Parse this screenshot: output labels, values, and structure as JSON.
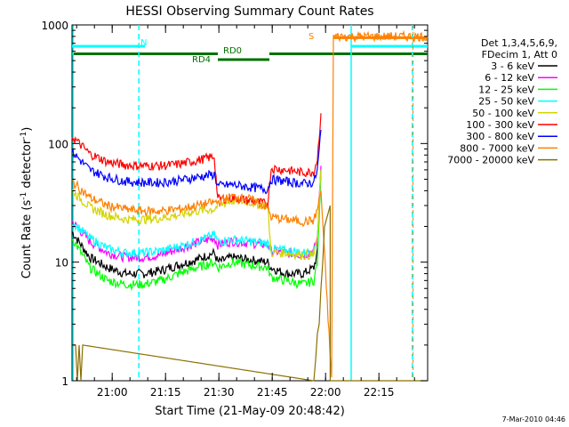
{
  "chart_data": {
    "type": "line",
    "title": "HESSI Observing Summary Count Rates",
    "xlabel": "Start Time (21-May-09 20:48:42)",
    "ylabel_main": "Count Rate (s",
    "ylabel_sup1": "-1",
    "ylabel_mid": " detector",
    "ylabel_sup2": "-1",
    "ylabel_end": ")",
    "y_scale": "log",
    "ylim": [
      1,
      1000
    ],
    "xlim_minutes": [
      0,
      100
    ],
    "y_ticks": [
      {
        "value": 1,
        "label": "1"
      },
      {
        "value": 10,
        "label": "10"
      },
      {
        "value": 100,
        "label": "100"
      },
      {
        "value": 1000,
        "label": "1000"
      }
    ],
    "x_ticks": [
      {
        "minute": 11.3,
        "label": "21:00"
      },
      {
        "minute": 26.3,
        "label": "21:15"
      },
      {
        "minute": 41.3,
        "label": "21:30"
      },
      {
        "minute": 56.3,
        "label": "21:45"
      },
      {
        "minute": 71.3,
        "label": "22:00"
      },
      {
        "minute": 86.3,
        "label": "22:15"
      }
    ],
    "legend": {
      "header": [
        "Det 1,3,4,5,6,9,",
        "FDecim 1, Att 0"
      ],
      "placement": "right"
    },
    "series": [
      {
        "name": "3 - 6 keV",
        "color": "#000000",
        "x": [
          0,
          5,
          10,
          15,
          20,
          25,
          30,
          35,
          40,
          41,
          45,
          50,
          55,
          56,
          60,
          65,
          68,
          69,
          70
        ],
        "y": [
          18,
          11,
          9,
          8,
          8,
          8.5,
          9.5,
          10.5,
          12,
          10,
          11,
          10.5,
          10,
          9,
          8,
          8,
          9,
          12,
          60
        ]
      },
      {
        "name": "6 - 12 keV",
        "color": "#ff00ff",
        "x": [
          0,
          5,
          10,
          15,
          20,
          25,
          30,
          35,
          40,
          41,
          45,
          50,
          55,
          56,
          60,
          65,
          68,
          69,
          70
        ],
        "y": [
          22,
          15,
          12,
          11,
          11,
          11.5,
          13,
          14.5,
          16,
          14,
          15,
          14.5,
          14,
          12.5,
          12,
          11.5,
          12.5,
          16,
          65
        ]
      },
      {
        "name": "12 - 25 keV",
        "color": "#00ff00",
        "x": [
          0,
          5,
          10,
          15,
          20,
          25,
          30,
          35,
          40,
          41,
          45,
          50,
          55,
          56,
          60,
          65,
          68,
          69,
          70
        ],
        "y": [
          16,
          9,
          7,
          6.5,
          6.5,
          7,
          8,
          9,
          10,
          9,
          10,
          9.5,
          9,
          7.5,
          7,
          6.5,
          7,
          10,
          55
        ]
      },
      {
        "name": "25 - 50 keV",
        "color": "#00ffff",
        "x": [
          0,
          5,
          10,
          15,
          20,
          25,
          30,
          35,
          40,
          41,
          45,
          50,
          55,
          56,
          60,
          65,
          68,
          69,
          70
        ],
        "y": [
          22,
          16,
          13,
          12,
          12,
          12.5,
          13.5,
          15,
          17,
          15,
          15.5,
          15,
          14.5,
          13,
          12.5,
          12,
          12.5,
          16,
          60
        ]
      },
      {
        "name": "50 - 100 keV",
        "color": "#d4d400",
        "x": [
          0,
          5,
          10,
          15,
          20,
          25,
          30,
          35,
          40,
          41,
          45,
          50,
          55,
          56,
          60,
          65,
          68,
          69,
          70
        ],
        "y": [
          40,
          29,
          25,
          23,
          23,
          23.5,
          25,
          27,
          28,
          30,
          33,
          32,
          30,
          12,
          12,
          11.5,
          11.5,
          15,
          60
        ]
      },
      {
        "name": "100 - 300 keV",
        "color": "#ff0000",
        "x": [
          0,
          5,
          10,
          15,
          20,
          25,
          30,
          35,
          40,
          41,
          45,
          50,
          55,
          56,
          60,
          65,
          68,
          69,
          70
        ],
        "y": [
          115,
          82,
          70,
          66,
          65,
          65,
          67,
          72,
          78,
          34,
          35,
          33,
          31,
          62,
          60,
          57,
          58,
          75,
          180
        ]
      },
      {
        "name": "300 - 800 keV",
        "color": "#0000ff",
        "x": [
          0,
          5,
          10,
          15,
          20,
          25,
          30,
          35,
          40,
          41,
          45,
          50,
          55,
          56,
          60,
          65,
          68,
          69,
          70
        ],
        "y": [
          85,
          60,
          52,
          48,
          47,
          47,
          49,
          52,
          55,
          44,
          45,
          43,
          41,
          50,
          48,
          46,
          47,
          60,
          130
        ]
      },
      {
        "name": "800 - 7000 keV",
        "color": "#ff8000",
        "x": [
          0,
          5,
          10,
          15,
          20,
          25,
          30,
          35,
          40,
          41,
          45,
          50,
          55,
          56,
          60,
          65,
          68,
          69,
          70,
          73,
          73.5,
          100
        ],
        "y": [
          48,
          35,
          30,
          28,
          27,
          27,
          28,
          30,
          32,
          32,
          36,
          34,
          29,
          24,
          23,
          22,
          22.5,
          28,
          40,
          1,
          800,
          800
        ]
      },
      {
        "name": "7000 - 20000 keV",
        "color": "#8b7000",
        "x": [
          0,
          1,
          1.5,
          2,
          2.5,
          3,
          68,
          68.5,
          69,
          69.5,
          70,
          70.5,
          71,
          72.6,
          72.6,
          100
        ],
        "y": [
          2,
          2,
          1,
          2,
          1,
          2,
          1,
          1.5,
          2.5,
          3,
          6,
          10,
          20,
          30,
          1,
          1
        ]
      }
    ],
    "annotations": [
      {
        "label": "N",
        "color": "#00ffff",
        "minute": 18.8
      },
      {
        "label": "S",
        "color": "#ff8000",
        "minute": 71.5
      },
      {
        "label": "RD0",
        "color": "#007000"
      },
      {
        "label": "RD4",
        "color": "#007000"
      }
    ]
  },
  "footer": {
    "timestamp": "7-Mar-2010 04:46"
  }
}
